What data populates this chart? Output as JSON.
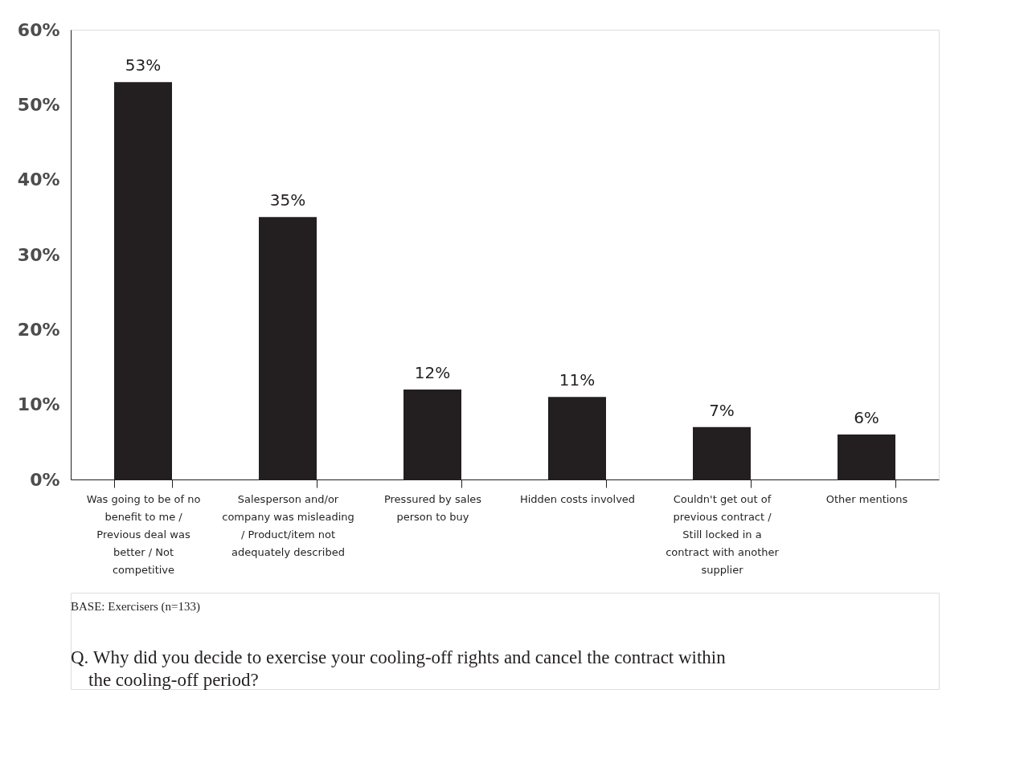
{
  "chart_data": {
    "type": "bar",
    "categories": [
      "Was going to be of no benefit to me / Previous deal was better / Not competitive",
      "Salesperson and/or company was misleading / Product/item not adequately described",
      "Pressured by sales person to buy",
      "Hidden costs involved",
      "Couldn't get out of previous contract / Still locked in a contract with another supplier",
      "Other mentions"
    ],
    "values": [
      53,
      35,
      12,
      11,
      7,
      6
    ],
    "color": "#231f20",
    "ylim": [
      0,
      60
    ],
    "yticks": [
      {
        "value": 0,
        "label": "0%"
      },
      {
        "value": 10,
        "label": "10%"
      },
      {
        "value": 20,
        "label": "20%"
      },
      {
        "value": 30,
        "label": "30%"
      },
      {
        "value": 40,
        "label": "40%"
      },
      {
        "value": 50,
        "label": "50%"
      },
      {
        "value": 60,
        "label": "60%"
      }
    ],
    "value_labels": [
      "53%",
      "35%",
      "12%",
      "11%",
      "7%",
      "6%"
    ],
    "grid": false,
    "annotations": [
      "BASE: Exercisers (n=133)",
      "Q. Why did you decide to exercise your cooling-off rights and cancel the contract within the cooling-off period?"
    ]
  }
}
